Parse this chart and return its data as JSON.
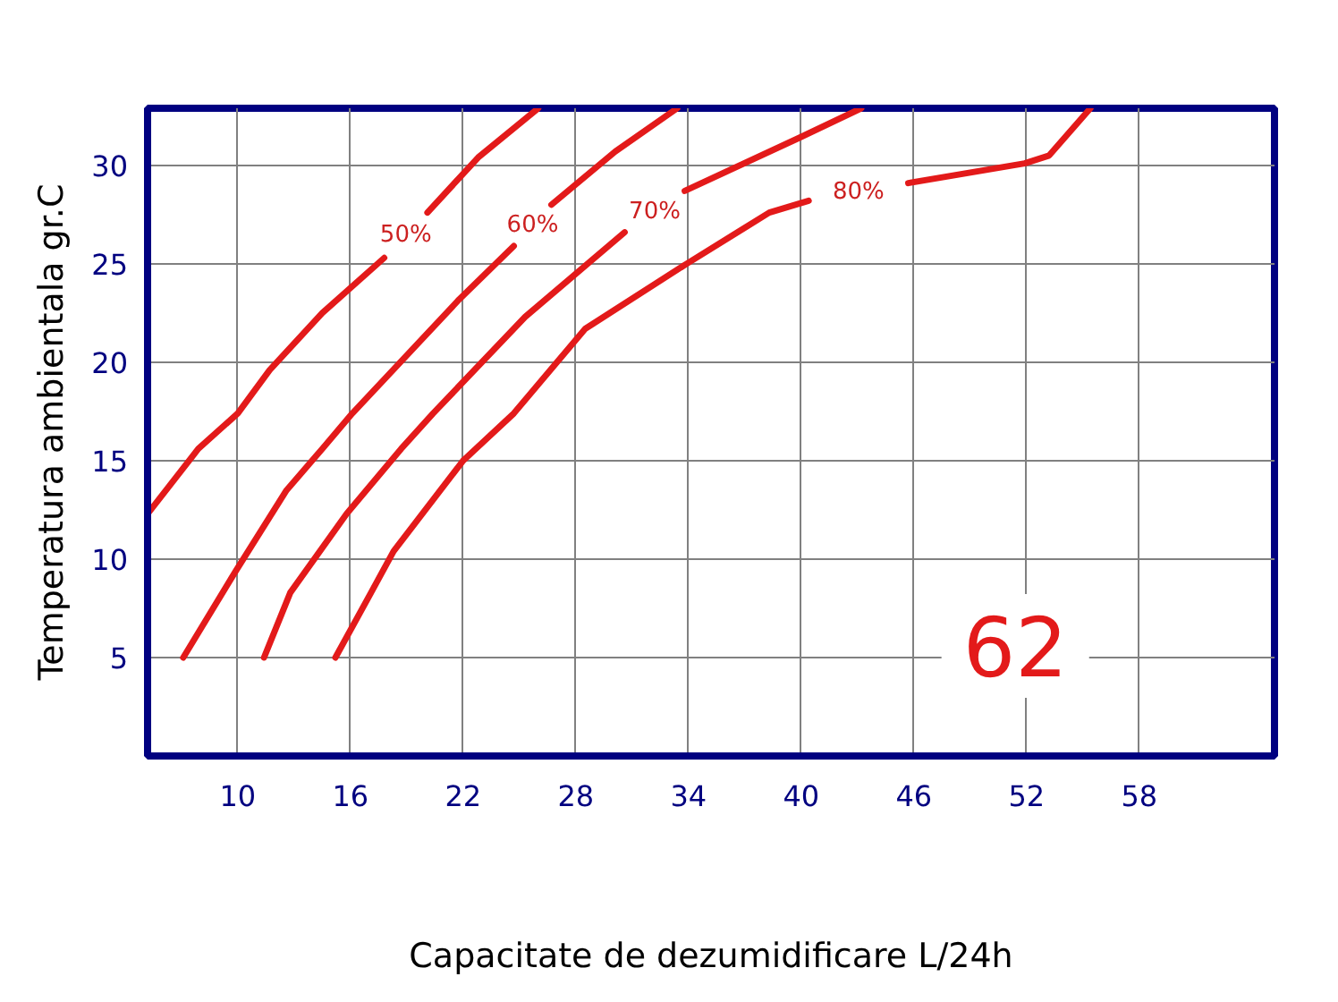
{
  "chart_data": {
    "type": "line",
    "xlabel": "Capacitate de dezumidificare L/24h",
    "ylabel": "Temperatura ambientala gr.C",
    "xlim": [
      5.2,
      65.2
    ],
    "ylim": [
      0,
      32.9
    ],
    "xticks": [
      10,
      16,
      22,
      28,
      34,
      40,
      46,
      52,
      58
    ],
    "yticks": [
      5,
      10,
      15,
      20,
      25,
      30
    ],
    "grid": true,
    "line_style": "solid",
    "marker": "none",
    "series": [
      {
        "name": "50%",
        "color": "#e31a1a",
        "x": [
          5.2,
          7.9,
          10,
          11.7,
          14.5,
          17.8,
          19.1,
          20.1,
          22.8,
          26.0
        ],
        "values": [
          12.3,
          15.6,
          17.4,
          19.6,
          22.5,
          25.3,
          null,
          27.6,
          30.4,
          32.9
        ]
      },
      {
        "name": "60%",
        "color": "#e31a1a",
        "x": [
          7.1,
          9.9,
          12.6,
          14.5,
          16.1,
          21.8,
          24.7,
          25.7,
          26.7,
          30.1,
          33.4
        ],
        "values": [
          5.0,
          9.4,
          13.5,
          15.6,
          17.4,
          23.2,
          25.9,
          null,
          28.0,
          30.7,
          32.9
        ]
      },
      {
        "name": "70%",
        "color": "#e31a1a",
        "x": [
          11.4,
          12.8,
          15.8,
          18.7,
          20.4,
          25.3,
          30.6,
          31.9,
          33.8,
          39.9,
          43.2
        ],
        "values": [
          5.0,
          8.3,
          12.3,
          15.6,
          17.4,
          22.3,
          26.6,
          null,
          28.7,
          31.4,
          32.9
        ]
      },
      {
        "name": "80%",
        "color": "#e31a1a",
        "x": [
          15.2,
          17.1,
          18.3,
          22.0,
          24.7,
          28.5,
          33.9,
          38.3,
          40.4,
          43.1,
          45.7,
          51.9,
          53.2,
          55.4
        ],
        "values": [
          5.0,
          8.3,
          10.4,
          15.0,
          17.4,
          21.7,
          25.0,
          27.6,
          28.2,
          null,
          29.1,
          30.1,
          30.5,
          32.9
        ]
      }
    ],
    "annotations": [
      "62"
    ]
  }
}
